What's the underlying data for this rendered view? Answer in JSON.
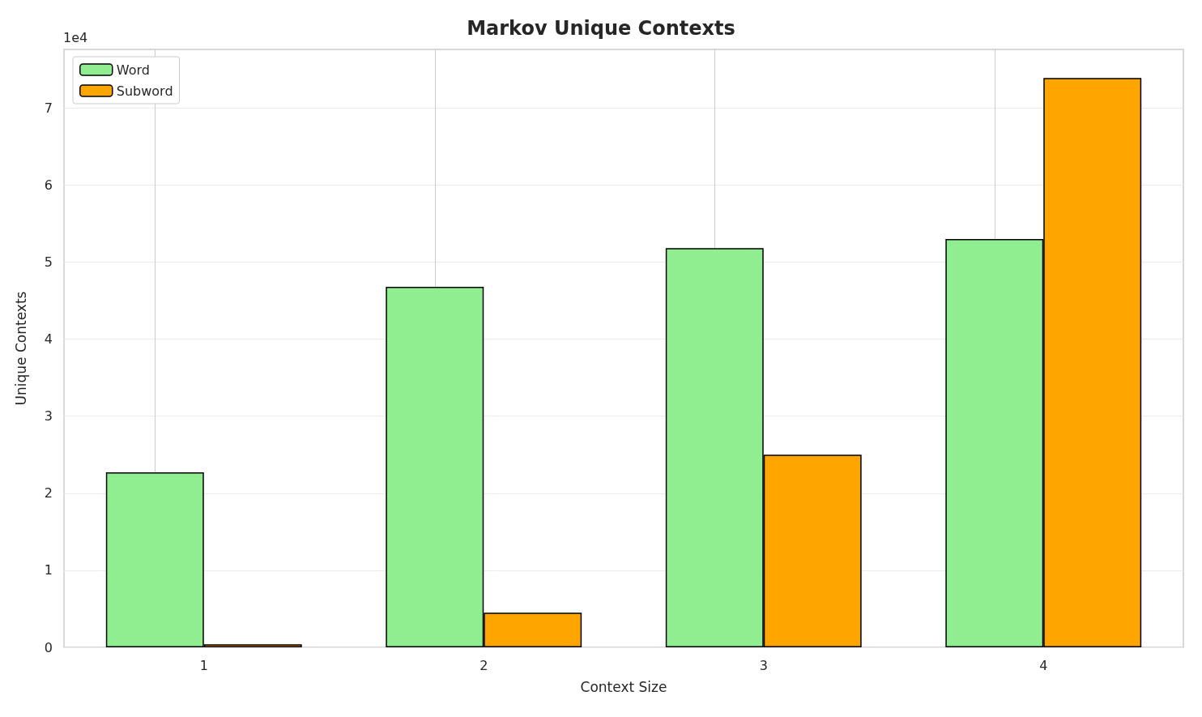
{
  "chart_data": {
    "type": "bar",
    "title": "Markov Unique Contexts",
    "xlabel": "Context Size",
    "ylabel": "Unique Contexts",
    "annotations": [
      "1e4"
    ],
    "categories": [
      "1",
      "2",
      "3",
      "4"
    ],
    "series": [
      {
        "name": "Word",
        "color": "#90ee90",
        "values": [
          2.27,
          4.68,
          5.18,
          5.3
        ]
      },
      {
        "name": "Subword",
        "color": "#ffa500",
        "values": [
          0.04,
          0.45,
          2.5,
          7.39
        ]
      }
    ],
    "ylim": [
      0,
      7.76
    ],
    "yticks": [
      0,
      1,
      2,
      3,
      4,
      5,
      6,
      7
    ],
    "grid": true,
    "legend": "top left"
  }
}
